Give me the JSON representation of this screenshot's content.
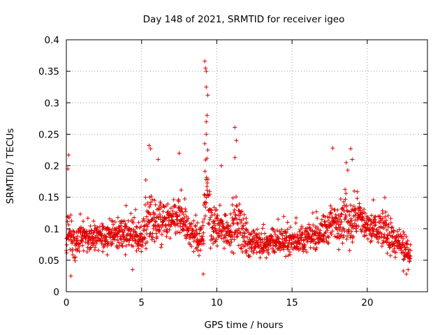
{
  "chart_data": {
    "type": "scatter",
    "title": "Day 148 of 2021, SRMTID for receiver igeo",
    "xlabel": "GPS time / hours",
    "ylabel": "SRMTID / TECUs",
    "xlim": [
      0,
      24
    ],
    "ylim": [
      0,
      0.4
    ],
    "x_ticks": [
      0,
      5,
      10,
      15,
      20
    ],
    "x_tick_labels": [
      "0",
      "5",
      "10",
      "15",
      "20"
    ],
    "y_ticks": [
      0,
      0.05,
      0.1,
      0.15,
      0.2,
      0.25,
      0.3,
      0.35,
      0.4
    ],
    "y_tick_labels": [
      "0",
      "0.05",
      "0.1",
      "0.15",
      "0.2",
      "0.25",
      "0.3",
      "0.35",
      "0.4"
    ],
    "grid": true,
    "marker": "+",
    "marker_color": "#e00000",
    "data_span_hours": [
      0,
      22.9
    ],
    "series": [
      {
        "name": "SRMTID",
        "envelope_x": [
          0,
          0.2,
          0.5,
          1,
          2,
          3,
          4,
          5,
          5.5,
          6,
          7,
          7.5,
          8,
          9,
          9.3,
          9.6,
          10,
          11,
          11.5,
          12,
          13,
          14,
          15,
          16,
          17,
          17.8,
          18.5,
          19,
          19.5,
          20,
          21,
          22,
          22.9
        ],
        "envelope_mid": [
          0.08,
          0.11,
          0.07,
          0.09,
          0.085,
          0.09,
          0.095,
          0.08,
          0.12,
          0.11,
          0.11,
          0.12,
          0.1,
          0.08,
          0.17,
          0.11,
          0.1,
          0.1,
          0.11,
          0.08,
          0.075,
          0.08,
          0.08,
          0.085,
          0.095,
          0.11,
          0.12,
          0.11,
          0.12,
          0.1,
          0.1,
          0.075,
          0.06
        ],
        "envelope_spread": [
          0.03,
          0.06,
          0.03,
          0.035,
          0.03,
          0.035,
          0.04,
          0.035,
          0.06,
          0.05,
          0.045,
          0.05,
          0.04,
          0.035,
          0.09,
          0.05,
          0.045,
          0.045,
          0.06,
          0.035,
          0.03,
          0.03,
          0.03,
          0.03,
          0.035,
          0.05,
          0.06,
          0.06,
          0.045,
          0.04,
          0.045,
          0.035,
          0.03
        ],
        "peaks": [
          {
            "x": 0.15,
            "y": 0.217
          },
          {
            "x": 0.1,
            "y": 0.195
          },
          {
            "x": 5.5,
            "y": 0.232
          },
          {
            "x": 5.6,
            "y": 0.227
          },
          {
            "x": 6.1,
            "y": 0.21
          },
          {
            "x": 7.5,
            "y": 0.22
          },
          {
            "x": 9.2,
            "y": 0.366
          },
          {
            "x": 9.25,
            "y": 0.355
          },
          {
            "x": 9.3,
            "y": 0.35
          },
          {
            "x": 9.3,
            "y": 0.325
          },
          {
            "x": 9.4,
            "y": 0.312
          },
          {
            "x": 9.35,
            "y": 0.28
          },
          {
            "x": 9.3,
            "y": 0.27
          },
          {
            "x": 9.3,
            "y": 0.25
          },
          {
            "x": 9.2,
            "y": 0.235
          },
          {
            "x": 9.4,
            "y": 0.225
          },
          {
            "x": 11.2,
            "y": 0.261
          },
          {
            "x": 11.3,
            "y": 0.24
          },
          {
            "x": 11.2,
            "y": 0.213
          },
          {
            "x": 10.3,
            "y": 0.2
          },
          {
            "x": 17.7,
            "y": 0.228
          },
          {
            "x": 18.9,
            "y": 0.227
          },
          {
            "x": 19.0,
            "y": 0.21
          },
          {
            "x": 18.6,
            "y": 0.205
          },
          {
            "x": 0.3,
            "y": 0.025
          },
          {
            "x": 4.4,
            "y": 0.035
          },
          {
            "x": 9.1,
            "y": 0.028
          },
          {
            "x": 22.6,
            "y": 0.028
          },
          {
            "x": 22.4,
            "y": 0.033
          }
        ]
      }
    ]
  }
}
